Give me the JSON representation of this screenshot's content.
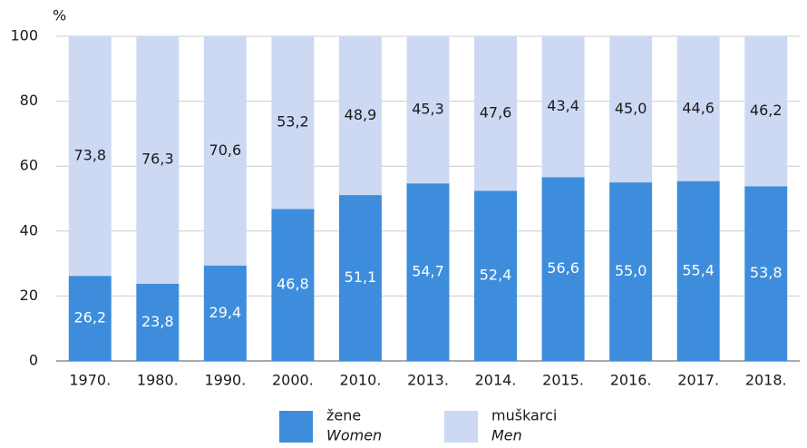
{
  "chart_data": {
    "type": "stacked_bar",
    "y_label": "%",
    "categories": [
      "1970.",
      "1980.",
      "1990.",
      "2000.",
      "2010.",
      "2013.",
      "2014.",
      "2015.",
      "2016.",
      "2017.",
      "2018."
    ],
    "series": [
      {
        "name": "žene",
        "name_en": "Women",
        "color": "#3d8ddc",
        "values": [
          26.2,
          23.8,
          29.4,
          46.8,
          51.1,
          54.7,
          52.4,
          56.6,
          55.0,
          55.4,
          53.8
        ],
        "value_labels": [
          "26,2",
          "23,8",
          "29,4",
          "46,8",
          "51,1",
          "54,7",
          "52,4",
          "56,6",
          "55,0",
          "55,4",
          "53,8"
        ]
      },
      {
        "name": "muškarci",
        "name_en": "Men",
        "color": "#cdd9f3",
        "values": [
          73.8,
          76.3,
          70.6,
          53.2,
          48.9,
          45.3,
          47.6,
          43.4,
          45.0,
          44.6,
          46.2
        ],
        "value_labels": [
          "73,8",
          "76,3",
          "70,6",
          "53,2",
          "48,9",
          "45,3",
          "47,6",
          "43,4",
          "45,0",
          "44,6",
          "46,2"
        ]
      }
    ],
    "ylim": [
      0,
      100
    ],
    "yticks": [
      0,
      20,
      40,
      60,
      80,
      100
    ],
    "grid": true
  }
}
